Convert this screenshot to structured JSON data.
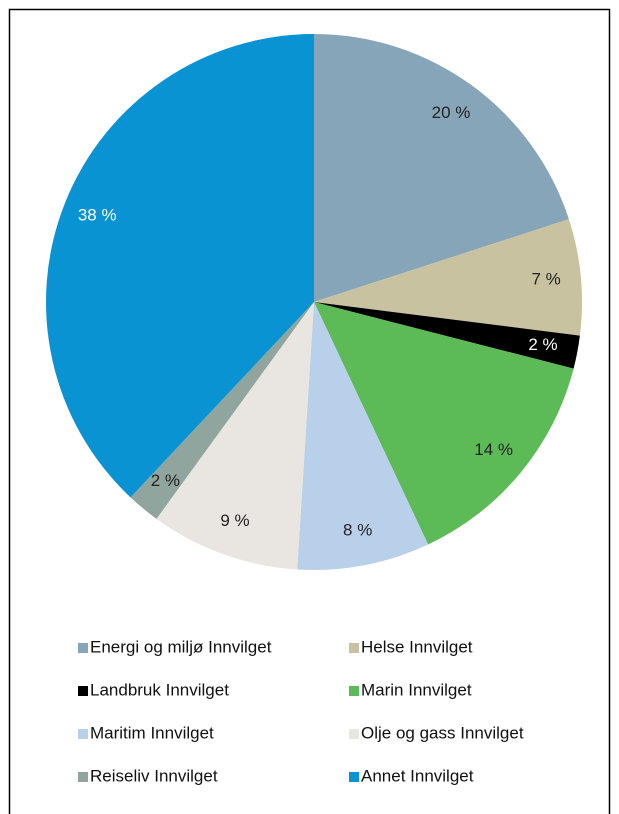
{
  "chart_data": {
    "type": "pie",
    "categories": [
      "Energi og miljø Innvilget",
      "Helse Innvilget",
      "Landbruk Innvilget",
      "Marin Innvilget",
      "Maritim Innvilget",
      "Olje og gass Innvilget",
      "Reiseliv Innvilget",
      "Annet Innvilget"
    ],
    "values": [
      20,
      7,
      2,
      14,
      8,
      9,
      2,
      38
    ],
    "value_labels": [
      "20 %",
      "7 %",
      "2 %",
      "14 %",
      "8 %",
      "9 %",
      "2 %",
      "38 %"
    ],
    "colors": [
      "#87a5b8",
      "#c9c2a1",
      "#000000",
      "#5cbb57",
      "#b9d0ea",
      "#e9e5e1",
      "#8fa59d",
      "#0a93d2"
    ],
    "legend": "bottom"
  }
}
